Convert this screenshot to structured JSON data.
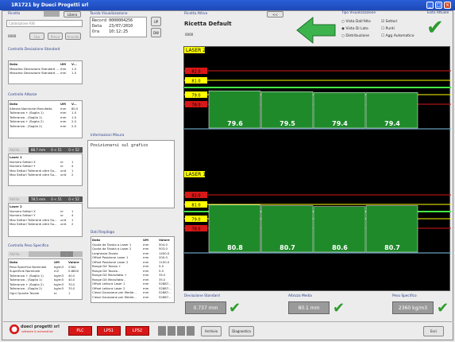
{
  "window": {
    "title": "1R1721 by Dueci Progetti srl"
  },
  "ricetta": {
    "label": "Ricetta",
    "selected": "Calibrazione R/B",
    "btn_libera": "Libera",
    "number": "0000",
    "btn_uso": "Uso",
    "btn_prova": "Prova",
    "btn_annulla": "Annulla"
  },
  "tavola": {
    "label": "Tavola Visualizzazione",
    "record_label": "Record",
    "record_value": "0000004256",
    "data_label": "Data",
    "data_value": "23/07/2010",
    "ora_label": "Ora",
    "ora_value": "10:12:25",
    "btn_up": "UP",
    "btn_dw": "DW"
  },
  "ricetta_attiva": {
    "label": "Ricetta Attiva",
    "name": "Ricetta Default",
    "code": "0000",
    "btn_back": "<<"
  },
  "tipo_vis": {
    "label": "Tipo Visualizzazione",
    "options": [
      "Vista Dall'Alto",
      "Vista Di Lato",
      "Distribuzione"
    ],
    "checks": [
      "Settori",
      "Punti",
      "Agg Automatico"
    ]
  },
  "esito": {
    "label": "Esito Attuale"
  },
  "dev_std": {
    "label": "Controllo Deviazione Standard",
    "head": [
      "Dato",
      "UM",
      "V..."
    ],
    "rows": [
      [
        "Massima Deviazione Standard ...",
        "mm",
        "1.0"
      ],
      [
        "Massima Deviazione Standard ...",
        "mm",
        "1.5"
      ]
    ]
  },
  "altezza": {
    "label": "Controllo Altezze",
    "head": [
      "Dato",
      "UM",
      "V..."
    ],
    "rows": [
      [
        "Altezza Nominale Manufatto",
        "mm",
        "80.0"
      ],
      [
        "Tolleranza + (Soglia 1)",
        "mm",
        "1.0"
      ],
      [
        "Tolleranza - (Soglia 1)",
        "mm",
        "1.0"
      ],
      [
        "Tolleranza + (Soglia 2)",
        "mm",
        "2.0"
      ],
      [
        "Tolleranza - (Soglia 2)",
        "mm",
        "2.0"
      ]
    ]
  },
  "laser1": {
    "tab_abilita": "Abilita",
    "tabs": [
      "88.7 mm",
      "0 < 51",
      "0 < 52"
    ],
    "title": "Laser 1",
    "rows": [
      [
        "Numero Settori X",
        "nr",
        "1"
      ],
      [
        "Numero Settori Y",
        "nr",
        "4"
      ],
      [
        "Max Settori Tolleranti oltre So...",
        "unit",
        "1"
      ],
      [
        "Max Settori Tolleranti oltre So...",
        "unit",
        "2"
      ]
    ]
  },
  "laser2": {
    "tab_abilita": "Abilita",
    "tabs": [
      "78.5 mm",
      "0 < 51",
      "0 < 52"
    ],
    "title": "Laser 2",
    "rows": [
      [
        "Numero Settori X",
        "nr",
        "1"
      ],
      [
        "Numero Settori Y",
        "nr",
        "4"
      ],
      [
        "Max Settori Tolleranti oltre So...",
        "unit",
        "1"
      ],
      [
        "Max Settori Tolleranti oltre So...",
        "unit",
        "2"
      ]
    ]
  },
  "peso": {
    "label": "Controllo Peso Specifico",
    "tab_abilita": "Abilita",
    "head": [
      "Dato",
      "UM",
      "Valore"
    ],
    "rows": [
      [
        "Peso Specifico Nominale",
        "kg/m3",
        "2384"
      ],
      [
        "Superficie Nominale",
        "m2",
        "0.8620"
      ],
      [
        "Tolleranza + (Soglia 1)",
        "kg/m3",
        "40.0"
      ],
      [
        "Tolleranza - (Soglia 1)",
        "kg/m3",
        "40.0"
      ],
      [
        "Tolleranza + (Soglia 2)",
        "kg/m3",
        "70.0"
      ],
      [
        "Tolleranza - (Soglia 2)",
        "kg/m3",
        "70.0"
      ],
      [
        "Ogni Quante Tavole",
        "nr",
        "1"
      ]
    ]
  },
  "info": {
    "label": "Informazioni Misura",
    "text": "Posizionarsi sul grafico"
  },
  "riepilogo": {
    "label": "Dati Riepilogo",
    "head": [
      "Dato",
      "UM",
      "Valore"
    ],
    "rows": [
      [
        "Quota da Tavola a Laser 1",
        "mm",
        "504.0"
      ],
      [
        "Quota da Tavola a Laser 2",
        "mm",
        "503.0"
      ],
      [
        "Larghezza Tavola",
        "mm",
        "1400.0"
      ],
      [
        "Offset Posizione Laser 1",
        "mm",
        "200.0"
      ],
      [
        "Offset Posizione Laser 2",
        "mm",
        "1100.0"
      ],
      [
        "Range DX Tavola +",
        "mm",
        "5.0"
      ],
      [
        "Range DX Tavola -",
        "mm",
        "5.0"
      ],
      [
        "Range DX Manufatto +",
        "mm",
        "35.0"
      ],
      [
        "Range DX Manufatto -",
        "mm",
        "35.0"
      ],
      [
        "Offset Lettura Laser 1",
        "mm",
        "52887..."
      ],
      [
        "Offset Lettura Laser 2",
        "mm",
        "52887..."
      ],
      [
        "Clessi Gaussiane per Medie...",
        "mm",
        "52887..."
      ],
      [
        "Clessi Gaussiane per Medie...",
        "mm",
        "52887..."
      ]
    ]
  },
  "chart_data": [
    {
      "type": "bar",
      "title": "LASER 2",
      "thresholds": [
        "82.0",
        "81.0",
        "79.0",
        "78.0"
      ],
      "values": [
        79.6,
        79.5,
        79.4,
        79.4
      ],
      "value_labels": [
        "79.6",
        "79.5",
        "79.4",
        "79.4"
      ]
    },
    {
      "type": "bar",
      "title": "LASER 1",
      "thresholds": [
        "82.0",
        "81.0",
        "79.0",
        "78.0"
      ],
      "values": [
        80.8,
        80.7,
        80.6,
        80.7
      ],
      "value_labels": [
        "80.8",
        "80.7",
        "80.6",
        "80.7"
      ]
    }
  ],
  "results": {
    "dev_label": "Deviazione Standard",
    "dev_value": "0.737 mm",
    "alt_label": "Altezza Media",
    "alt_value": "80.1 mm",
    "peso_label": "Peso Specifico",
    "peso_value": "2360 kg/m3"
  },
  "footer": {
    "logo_name": "dueci progetti srl",
    "logo_sub": "software & automation",
    "btn_plc": "PLC",
    "btn_lps1": "LPS1",
    "btn_lps2": "LPS2",
    "btn_archivio": "Archivio",
    "btn_diagnostica": "Diagnostica",
    "btn_esci": "Esci"
  },
  "colors": {
    "accent": "#2d9b2d",
    "alarm": "#d81818",
    "warn": "#ffff00"
  }
}
